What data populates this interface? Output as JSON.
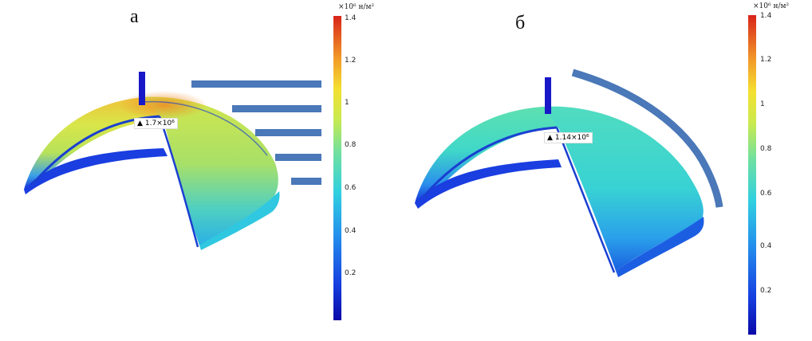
{
  "panels": [
    {
      "label": "а",
      "marker_text": "1.7×10⁶",
      "colorbar": {
        "unit_title": "×10⁶ н/м²",
        "ticks": [
          "1.4",
          "1.2",
          "1",
          "0.8",
          "0.6",
          "0.4",
          "0.2"
        ]
      }
    },
    {
      "label": "б",
      "marker_text": "1.14×10⁶",
      "colorbar": {
        "unit_title": "×10⁶ н/м²",
        "ticks": [
          "1.4",
          "1.2",
          "1",
          "0.8",
          "0.6",
          "0.4",
          "0.2"
        ]
      }
    }
  ],
  "colormap": [
    "#1010c0",
    "#1a4fe6",
    "#2aa7e8",
    "#3fd6d0",
    "#7ee08a",
    "#d6e64a",
    "#f2c23a",
    "#ef7a22",
    "#d42a1a"
  ],
  "load_bar_color": "#4a78b8"
}
